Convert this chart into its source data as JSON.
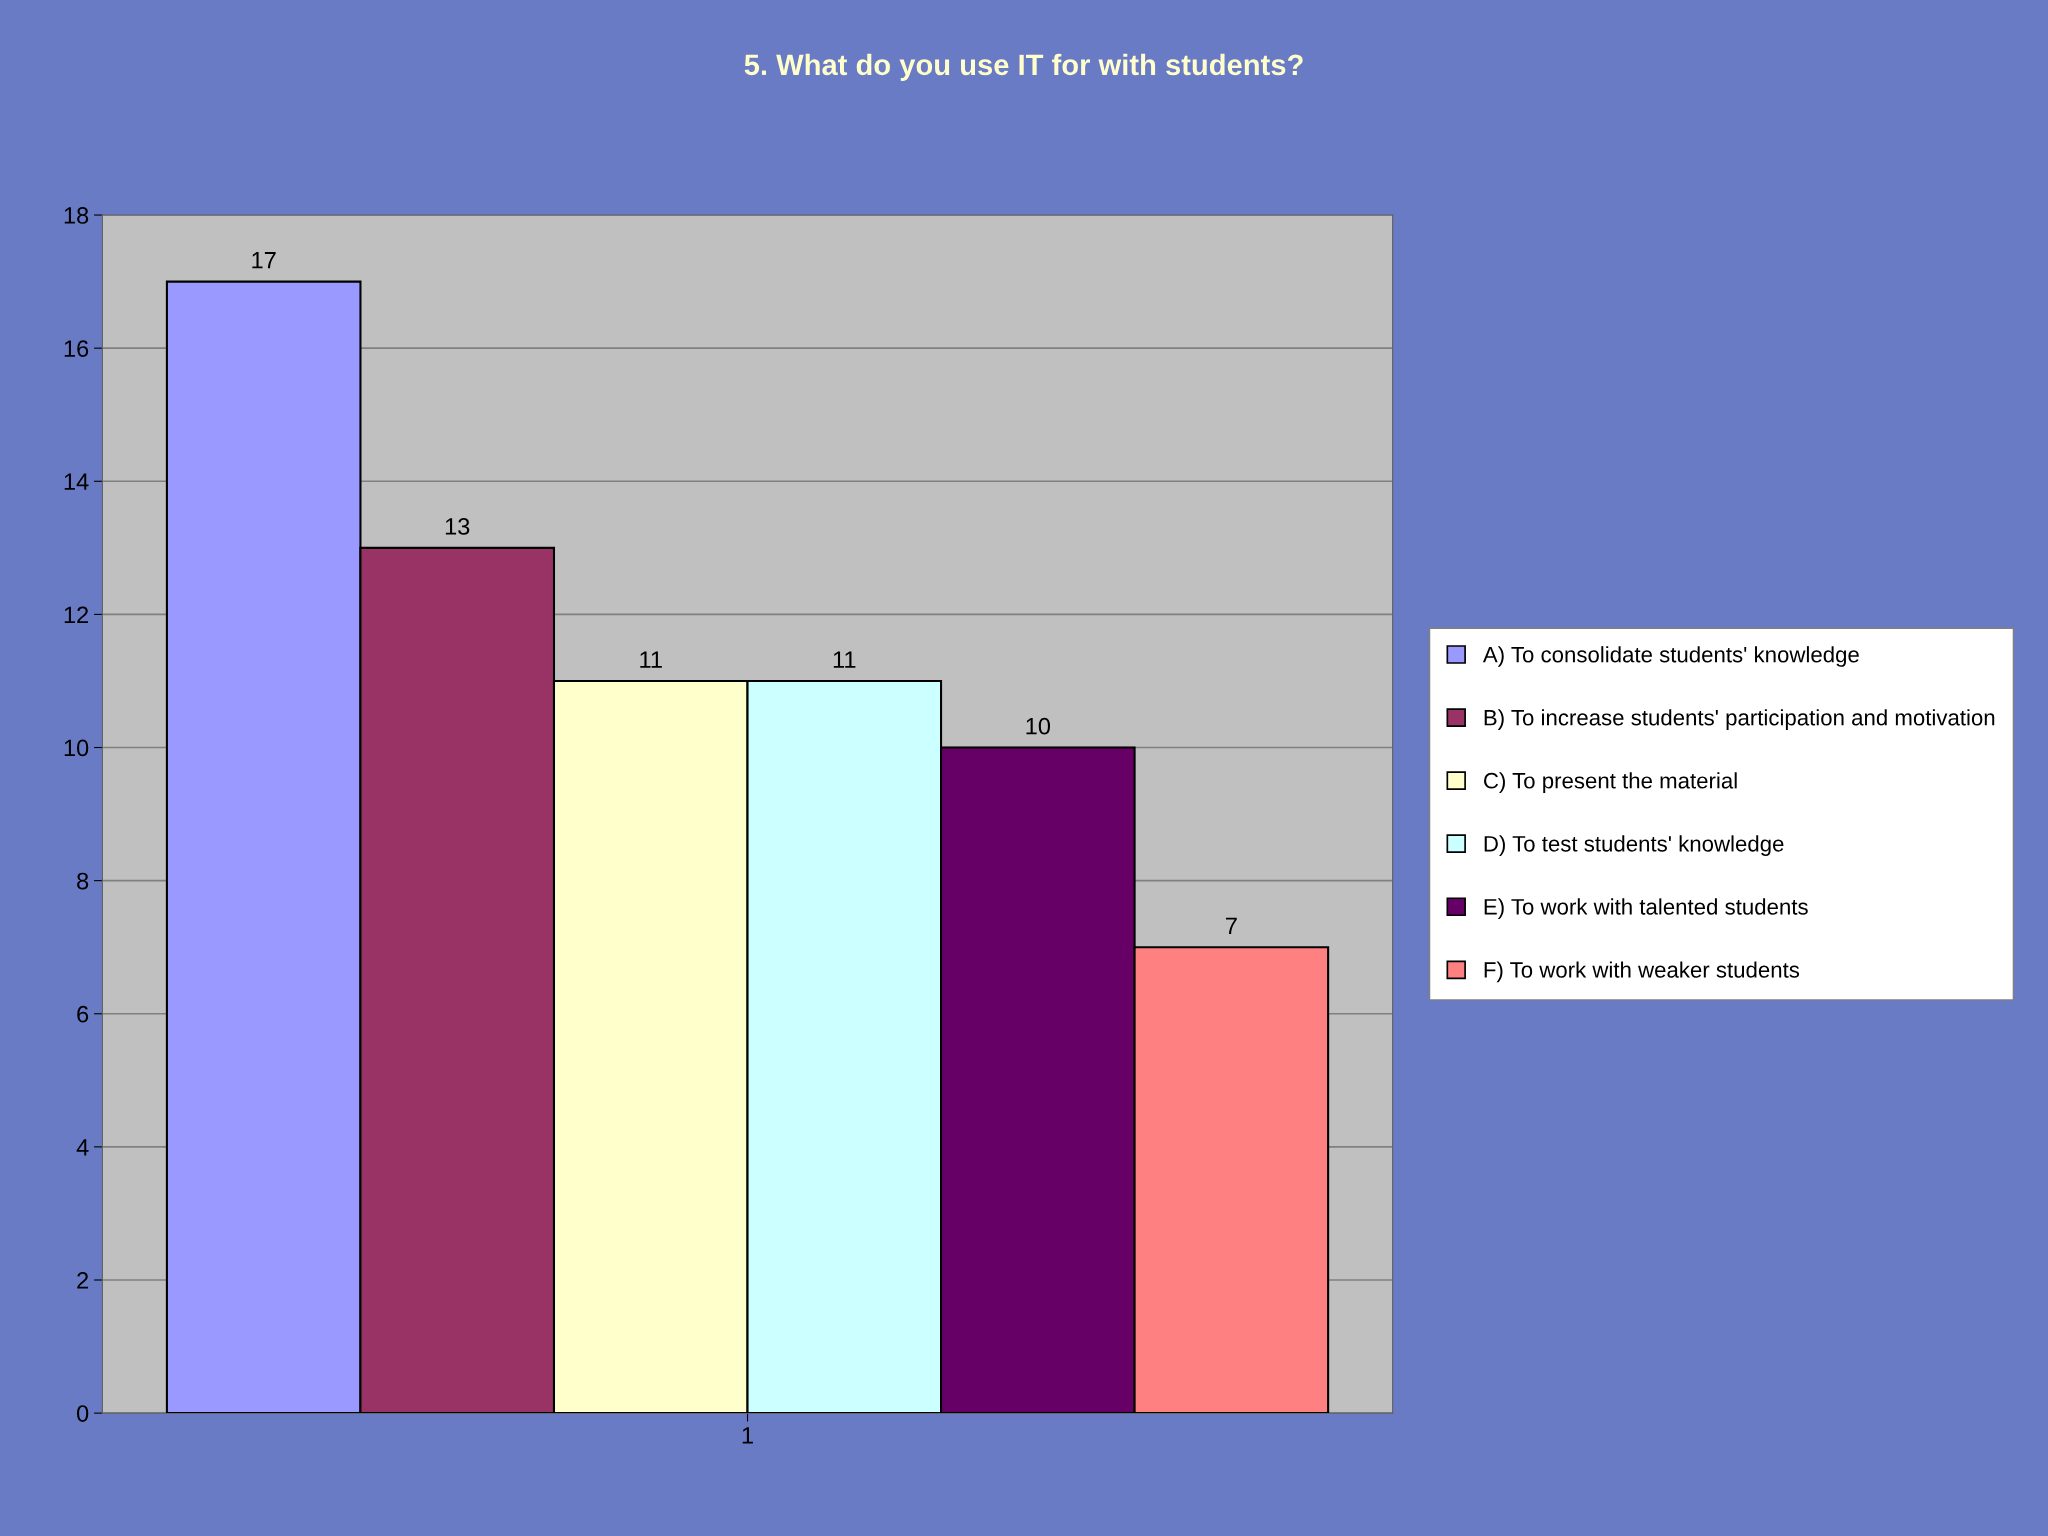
{
  "chart_data": {
    "type": "bar",
    "title": "5. What do you use IT for with students?",
    "categories": [
      "1"
    ],
    "series": [
      {
        "name": "A) To consolidate students' knowledge",
        "color": "#9999ff",
        "values": [
          17
        ]
      },
      {
        "name": "B) To increase students' participation and motivation",
        "color": "#993366",
        "values": [
          13
        ]
      },
      {
        "name": "C) To present the material",
        "color": "#ffffcc",
        "values": [
          11
        ]
      },
      {
        "name": "D) To test students' knowledge",
        "color": "#ccffff",
        "values": [
          11
        ]
      },
      {
        "name": "E) To work with talented students",
        "color": "#660066",
        "values": [
          10
        ]
      },
      {
        "name": "F) To work with weaker students",
        "color": "#ff8080",
        "values": [
          7
        ]
      }
    ],
    "ylim": [
      0,
      18
    ],
    "yticks": [
      0,
      2,
      4,
      6,
      8,
      10,
      12,
      14,
      16,
      18
    ],
    "grid": "y",
    "legend": "right",
    "data_labels": true
  }
}
